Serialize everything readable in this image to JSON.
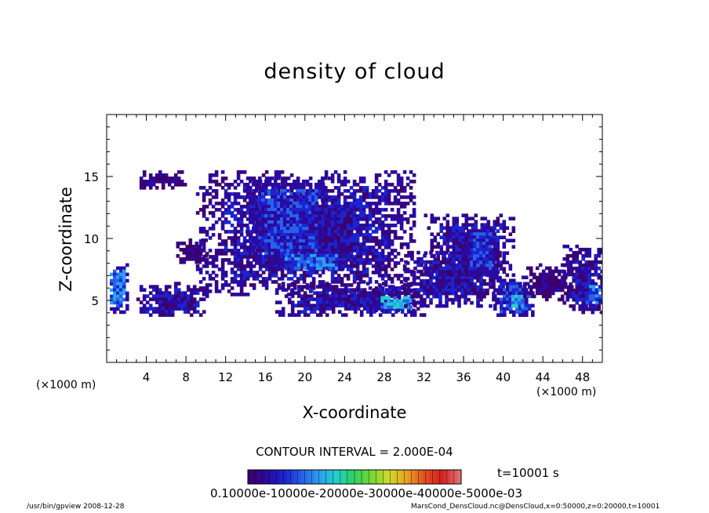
{
  "chart_data": {
    "type": "heatmap",
    "title": "density of cloud",
    "xlabel": "X-coordinate",
    "ylabel": "Z-coordinate",
    "x_unit": "(×1000 m)",
    "xlim": [
      0,
      50
    ],
    "ylim": [
      0,
      20
    ],
    "x_ticks": [
      4,
      8,
      12,
      16,
      20,
      24,
      28,
      32,
      36,
      40,
      44,
      48
    ],
    "y_ticks": [
      5,
      10,
      15
    ],
    "grid": false,
    "contour_interval": "CONTOUR INTERVAL = 2.000E-04",
    "time": "t=10001 s",
    "colorbar": {
      "labels_text": "0.10000e-10000e-20000e-30000e-40000e-5000e-03",
      "colors": [
        "#3c006e",
        "#2a0aa0",
        "#1a24d0",
        "#2860e8",
        "#2aa0f0",
        "#22d0c8",
        "#30d060",
        "#7ad830",
        "#d0d830",
        "#e8a020",
        "#e05020",
        "#d82020",
        "#e07070"
      ]
    },
    "cloud_cells": [
      {
        "x": [
          0,
          2
        ],
        "z": [
          4,
          8
        ],
        "level": 3
      },
      {
        "x": [
          3,
          10
        ],
        "z": [
          3.8,
          6.5
        ],
        "level": 1
      },
      {
        "x": [
          3,
          8
        ],
        "z": [
          14.2,
          15.5
        ],
        "level": 0
      },
      {
        "x": [
          7,
          10
        ],
        "z": [
          8,
          10
        ],
        "level": 0
      },
      {
        "x": [
          9,
          31
        ],
        "z": [
          5.5,
          15.5
        ],
        "level": 1
      },
      {
        "x": [
          14,
          22
        ],
        "z": [
          8,
          15
        ],
        "level": 2
      },
      {
        "x": [
          17,
          24
        ],
        "z": [
          7.5,
          9
        ],
        "level": 3
      },
      {
        "x": [
          17,
          32
        ],
        "z": [
          3.8,
          6.5
        ],
        "level": 1
      },
      {
        "x": [
          27,
          31
        ],
        "z": [
          4.2,
          5.6
        ],
        "level": 4
      },
      {
        "x": [
          30,
          40
        ],
        "z": [
          4.5,
          9
        ],
        "level": 1
      },
      {
        "x": [
          32,
          41
        ],
        "z": [
          7,
          12
        ],
        "level": 1
      },
      {
        "x": [
          36,
          39
        ],
        "z": [
          7,
          11
        ],
        "level": 2
      },
      {
        "x": [
          39,
          43
        ],
        "z": [
          3.8,
          7
        ],
        "level": 2
      },
      {
        "x": [
          40.5,
          42
        ],
        "z": [
          4.5,
          5.7
        ],
        "level": 4
      },
      {
        "x": [
          42,
          47
        ],
        "z": [
          5,
          8
        ],
        "level": 0
      },
      {
        "x": [
          46,
          50
        ],
        "z": [
          4,
          9.5
        ],
        "level": 1
      },
      {
        "x": [
          48,
          50
        ],
        "z": [
          4.5,
          6.5
        ],
        "level": 3
      }
    ]
  },
  "footer": {
    "left": "/usr/bin/gpview   2008-12-28",
    "right": "MarsCond_DensCloud.nc@DensCloud,x=0:50000,z=0:20000,t=10001"
  }
}
